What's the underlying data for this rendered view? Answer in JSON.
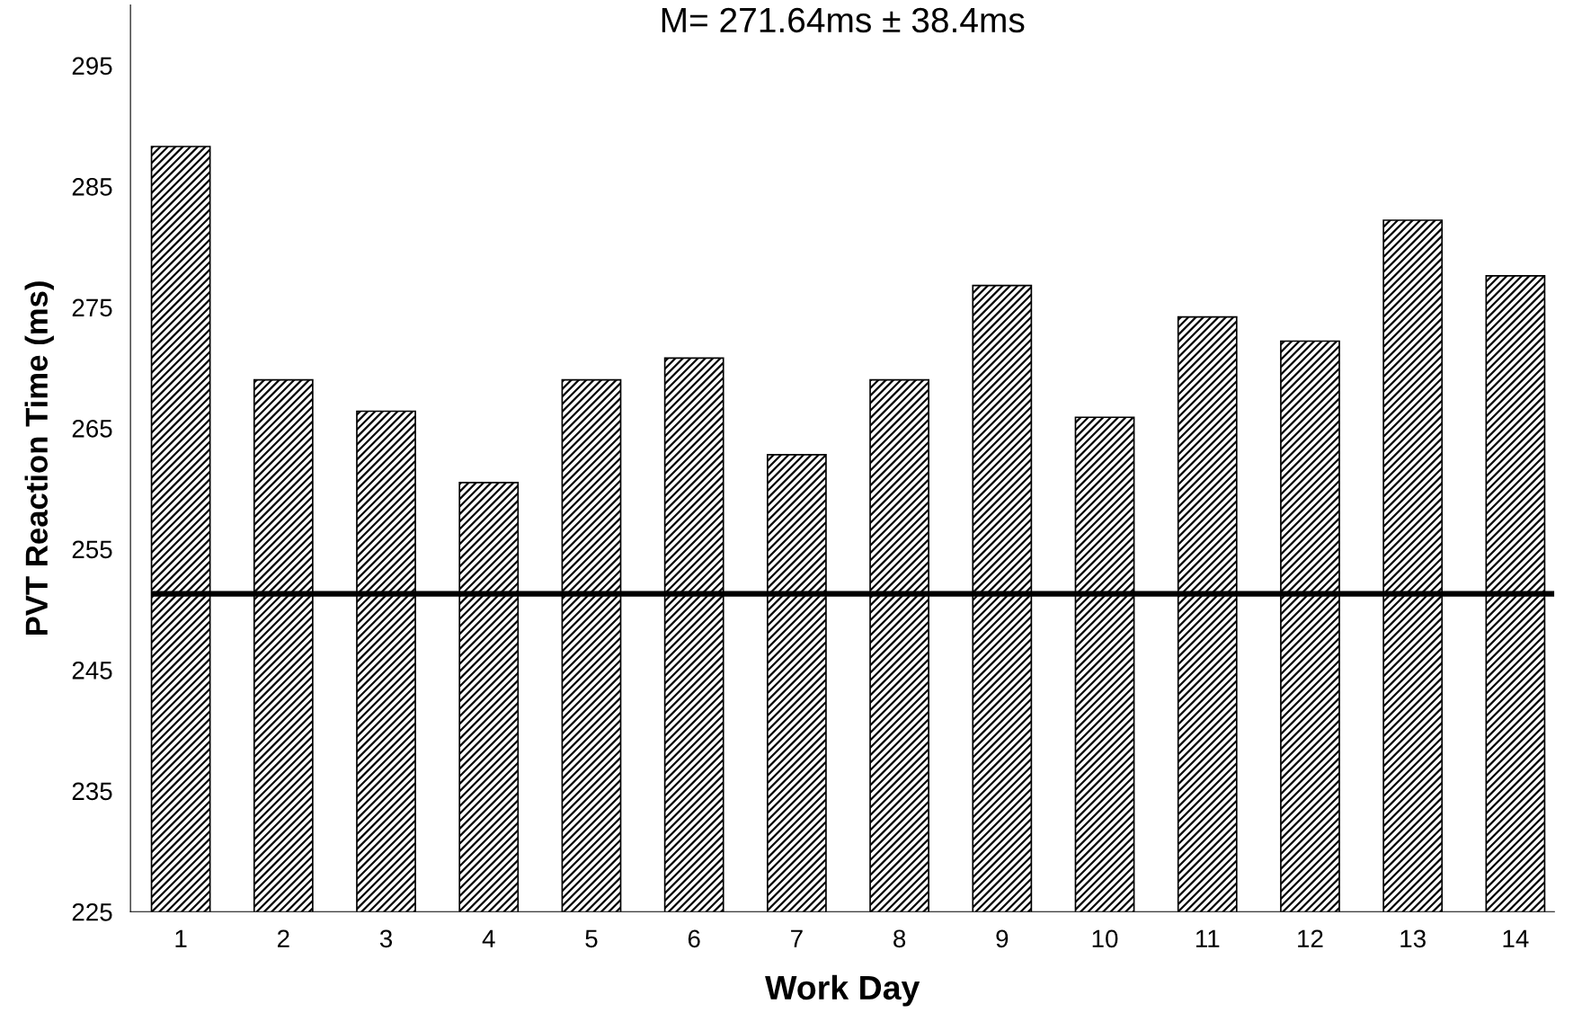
{
  "chart_data": {
    "type": "bar",
    "title": "M= 271.64ms ± 38.4ms",
    "xlabel": "Work Day",
    "ylabel": "PVT Reaction Time (ms)",
    "categories": [
      "1",
      "2",
      "3",
      "4",
      "5",
      "6",
      "7",
      "8",
      "9",
      "10",
      "11",
      "12",
      "13",
      "14"
    ],
    "values": [
      288.3,
      269.0,
      266.4,
      260.5,
      269.0,
      270.8,
      262.8,
      269.0,
      276.8,
      265.9,
      274.2,
      272.2,
      282.2,
      277.6
    ],
    "color": "#000000",
    "ylim": [
      225,
      300
    ],
    "yticks": [
      225,
      235,
      245,
      255,
      265,
      275,
      285,
      295
    ],
    "ref_lines": [
      {
        "axis": "y",
        "value": 251.3,
        "color": "#000000",
        "line_style": "solid"
      }
    ],
    "grid": false,
    "legend": false
  }
}
